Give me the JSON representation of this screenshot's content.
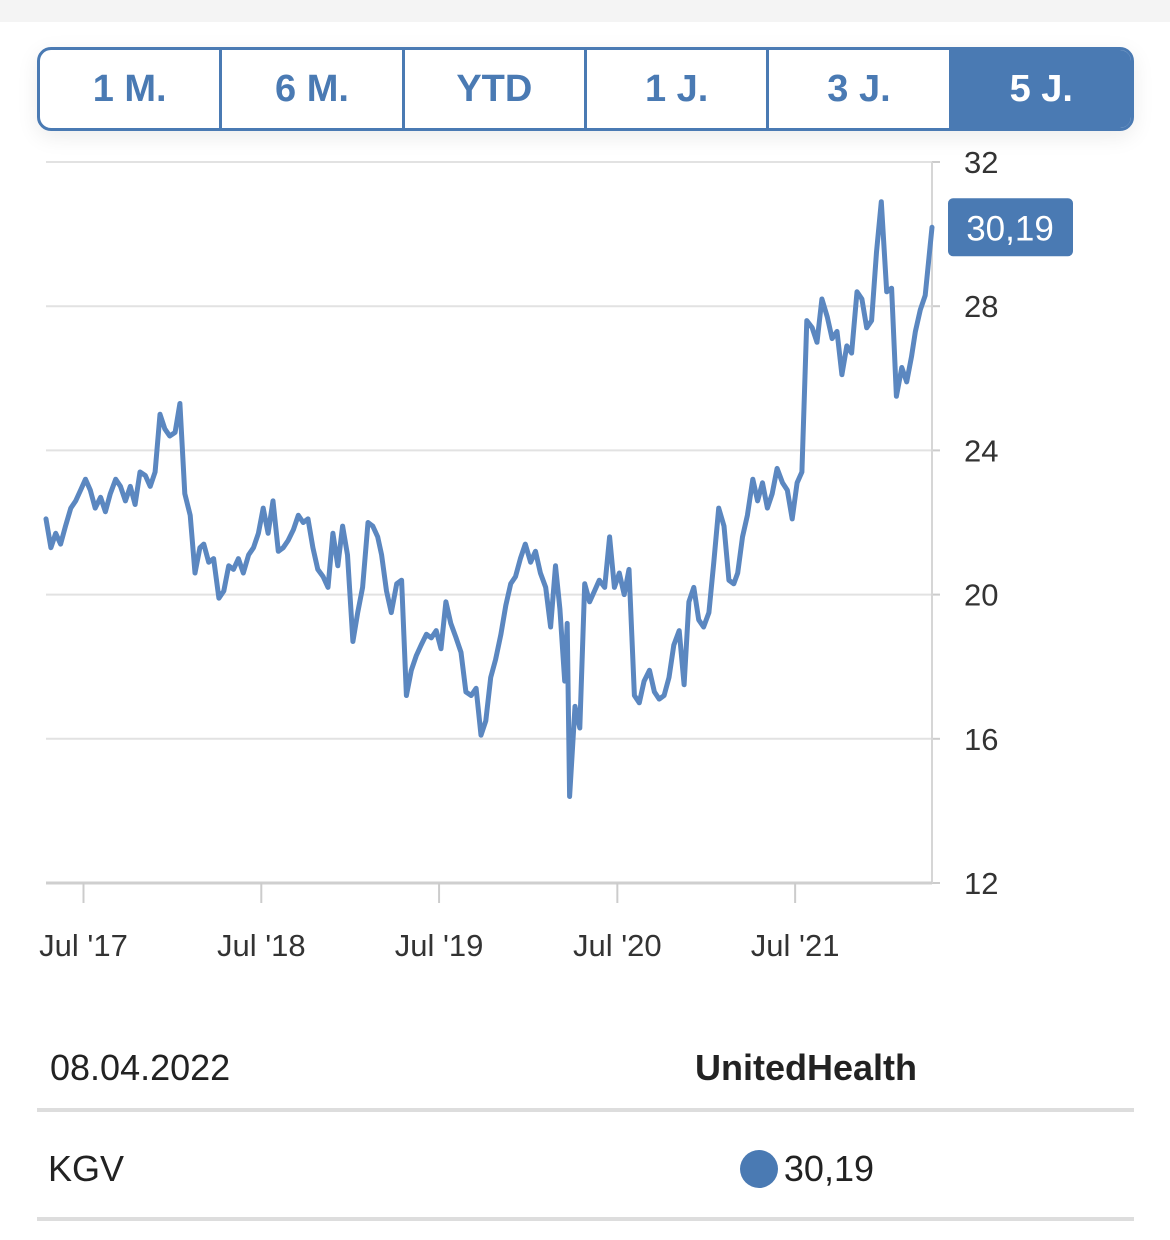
{
  "range_tabs": [
    {
      "label": "1 M.",
      "active": false
    },
    {
      "label": "6 M.",
      "active": false
    },
    {
      "label": "YTD",
      "active": false
    },
    {
      "label": "1 J.",
      "active": false
    },
    {
      "label": "3 J.",
      "active": false
    },
    {
      "label": "5 J.",
      "active": true
    }
  ],
  "info": {
    "date": "08.04.2022",
    "company": "UnitedHealth",
    "metric_label": "KGV",
    "metric_value": "30,19"
  },
  "colors": {
    "accent": "#4a7ab3",
    "line": "#5b87c0",
    "grid": "#e2e2e2",
    "divider": "#dddddd"
  },
  "chart_data": {
    "type": "line",
    "ylim": [
      12,
      32
    ],
    "yticks": [
      12,
      16,
      20,
      24,
      28,
      32
    ],
    "ytick_labels": [
      "12",
      "16",
      "20",
      "24",
      "28",
      "32"
    ],
    "xlim": [
      "2017-04-15",
      "2022-04-08"
    ],
    "xticks": [
      {
        "date": "2017-07-01",
        "label": "Jul '17"
      },
      {
        "date": "2018-07-01",
        "label": "Jul '18"
      },
      {
        "date": "2019-07-01",
        "label": "Jul '19"
      },
      {
        "date": "2020-07-01",
        "label": "Jul '20"
      },
      {
        "date": "2021-07-01",
        "label": "Jul '21"
      }
    ],
    "last_value_label": "30,19",
    "grid": true,
    "series": [
      {
        "points": [
          [
            "2017-04-15",
            22.1
          ],
          [
            "2017-04-25",
            21.3
          ],
          [
            "2017-05-05",
            21.7
          ],
          [
            "2017-05-15",
            21.4
          ],
          [
            "2017-05-25",
            21.9
          ],
          [
            "2017-06-05",
            22.4
          ],
          [
            "2017-06-15",
            22.6
          ],
          [
            "2017-06-25",
            22.9
          ],
          [
            "2017-07-05",
            23.2
          ],
          [
            "2017-07-15",
            22.9
          ],
          [
            "2017-07-25",
            22.4
          ],
          [
            "2017-08-05",
            22.7
          ],
          [
            "2017-08-15",
            22.3
          ],
          [
            "2017-08-25",
            22.8
          ],
          [
            "2017-09-05",
            23.2
          ],
          [
            "2017-09-15",
            23.0
          ],
          [
            "2017-09-25",
            22.6
          ],
          [
            "2017-10-05",
            23.0
          ],
          [
            "2017-10-15",
            22.5
          ],
          [
            "2017-10-25",
            23.4
          ],
          [
            "2017-11-05",
            23.3
          ],
          [
            "2017-11-15",
            23.0
          ],
          [
            "2017-11-25",
            23.4
          ],
          [
            "2017-12-05",
            25.0
          ],
          [
            "2017-12-15",
            24.6
          ],
          [
            "2017-12-25",
            24.4
          ],
          [
            "2018-01-05",
            24.5
          ],
          [
            "2018-01-15",
            25.3
          ],
          [
            "2018-01-25",
            22.8
          ],
          [
            "2018-02-05",
            22.2
          ],
          [
            "2018-02-15",
            20.6
          ],
          [
            "2018-02-25",
            21.3
          ],
          [
            "2018-03-05",
            21.4
          ],
          [
            "2018-03-15",
            20.9
          ],
          [
            "2018-03-25",
            21.0
          ],
          [
            "2018-04-05",
            19.9
          ],
          [
            "2018-04-15",
            20.1
          ],
          [
            "2018-04-25",
            20.8
          ],
          [
            "2018-05-05",
            20.7
          ],
          [
            "2018-05-15",
            21.0
          ],
          [
            "2018-05-25",
            20.6
          ],
          [
            "2018-06-05",
            21.1
          ],
          [
            "2018-06-15",
            21.3
          ],
          [
            "2018-06-25",
            21.7
          ],
          [
            "2018-07-05",
            22.4
          ],
          [
            "2018-07-15",
            21.7
          ],
          [
            "2018-07-25",
            22.6
          ],
          [
            "2018-08-05",
            21.2
          ],
          [
            "2018-08-15",
            21.3
          ],
          [
            "2018-08-25",
            21.5
          ],
          [
            "2018-09-05",
            21.8
          ],
          [
            "2018-09-15",
            22.2
          ],
          [
            "2018-09-25",
            22.0
          ],
          [
            "2018-10-05",
            22.1
          ],
          [
            "2018-10-15",
            21.3
          ],
          [
            "2018-10-25",
            20.7
          ],
          [
            "2018-11-05",
            20.5
          ],
          [
            "2018-11-15",
            20.2
          ],
          [
            "2018-11-25",
            21.7
          ],
          [
            "2018-12-05",
            20.8
          ],
          [
            "2018-12-15",
            21.9
          ],
          [
            "2018-12-25",
            21.1
          ],
          [
            "2019-01-05",
            18.7
          ],
          [
            "2019-01-15",
            19.5
          ],
          [
            "2019-01-25",
            20.2
          ],
          [
            "2019-02-05",
            22.0
          ],
          [
            "2019-02-15",
            21.9
          ],
          [
            "2019-02-25",
            21.6
          ],
          [
            "2019-03-05",
            21.1
          ],
          [
            "2019-03-15",
            20.1
          ],
          [
            "2019-03-25",
            19.5
          ],
          [
            "2019-04-05",
            20.3
          ],
          [
            "2019-04-15",
            20.4
          ],
          [
            "2019-04-25",
            17.2
          ],
          [
            "2019-05-05",
            17.9
          ],
          [
            "2019-05-15",
            18.3
          ],
          [
            "2019-05-25",
            18.6
          ],
          [
            "2019-06-05",
            18.9
          ],
          [
            "2019-06-15",
            18.8
          ],
          [
            "2019-06-25",
            19.0
          ],
          [
            "2019-07-05",
            18.5
          ],
          [
            "2019-07-15",
            19.8
          ],
          [
            "2019-07-25",
            19.2
          ],
          [
            "2019-08-05",
            18.8
          ],
          [
            "2019-08-15",
            18.4
          ],
          [
            "2019-08-25",
            17.3
          ],
          [
            "2019-09-05",
            17.2
          ],
          [
            "2019-09-15",
            17.4
          ],
          [
            "2019-09-25",
            16.1
          ],
          [
            "2019-10-05",
            16.5
          ],
          [
            "2019-10-15",
            17.7
          ],
          [
            "2019-10-25",
            18.2
          ],
          [
            "2019-11-05",
            18.9
          ],
          [
            "2019-11-15",
            19.7
          ],
          [
            "2019-11-25",
            20.3
          ],
          [
            "2019-12-05",
            20.5
          ],
          [
            "2019-12-15",
            21.0
          ],
          [
            "2019-12-25",
            21.4
          ],
          [
            "2020-01-05",
            20.9
          ],
          [
            "2020-01-15",
            21.2
          ],
          [
            "2020-01-25",
            20.6
          ],
          [
            "2020-02-05",
            20.2
          ],
          [
            "2020-02-15",
            19.1
          ],
          [
            "2020-02-25",
            20.8
          ],
          [
            "2020-03-05",
            19.6
          ],
          [
            "2020-03-15",
            17.6
          ],
          [
            "2020-03-20",
            19.2
          ],
          [
            "2020-03-25",
            14.4
          ],
          [
            "2020-04-05",
            16.9
          ],
          [
            "2020-04-15",
            16.3
          ],
          [
            "2020-04-25",
            20.3
          ],
          [
            "2020-05-05",
            19.8
          ],
          [
            "2020-05-15",
            20.1
          ],
          [
            "2020-05-25",
            20.4
          ],
          [
            "2020-06-05",
            20.2
          ],
          [
            "2020-06-15",
            21.6
          ],
          [
            "2020-06-25",
            20.2
          ],
          [
            "2020-07-05",
            20.6
          ],
          [
            "2020-07-15",
            20.0
          ],
          [
            "2020-07-25",
            20.7
          ],
          [
            "2020-08-05",
            17.2
          ],
          [
            "2020-08-15",
            17.0
          ],
          [
            "2020-08-25",
            17.6
          ],
          [
            "2020-09-05",
            17.9
          ],
          [
            "2020-09-15",
            17.3
          ],
          [
            "2020-09-25",
            17.1
          ],
          [
            "2020-10-05",
            17.2
          ],
          [
            "2020-10-15",
            17.7
          ],
          [
            "2020-10-25",
            18.6
          ],
          [
            "2020-11-05",
            19.0
          ],
          [
            "2020-11-15",
            17.5
          ],
          [
            "2020-11-25",
            19.8
          ],
          [
            "2020-12-05",
            20.2
          ],
          [
            "2020-12-15",
            19.3
          ],
          [
            "2020-12-25",
            19.1
          ],
          [
            "2021-01-05",
            19.5
          ],
          [
            "2021-01-15",
            20.9
          ],
          [
            "2021-01-25",
            22.4
          ],
          [
            "2021-02-05",
            21.9
          ],
          [
            "2021-02-15",
            20.4
          ],
          [
            "2021-02-25",
            20.3
          ],
          [
            "2021-03-05",
            20.6
          ],
          [
            "2021-03-15",
            21.6
          ],
          [
            "2021-03-25",
            22.2
          ],
          [
            "2021-04-05",
            23.2
          ],
          [
            "2021-04-15",
            22.6
          ],
          [
            "2021-04-25",
            23.1
          ],
          [
            "2021-05-05",
            22.4
          ],
          [
            "2021-05-15",
            22.8
          ],
          [
            "2021-05-25",
            23.5
          ],
          [
            "2021-06-05",
            23.1
          ],
          [
            "2021-06-15",
            22.9
          ],
          [
            "2021-06-25",
            22.1
          ],
          [
            "2021-07-05",
            23.1
          ],
          [
            "2021-07-15",
            23.4
          ],
          [
            "2021-07-25",
            27.6
          ],
          [
            "2021-08-05",
            27.4
          ],
          [
            "2021-08-15",
            27.0
          ],
          [
            "2021-08-25",
            28.2
          ],
          [
            "2021-09-05",
            27.7
          ],
          [
            "2021-09-15",
            27.1
          ],
          [
            "2021-09-25",
            27.3
          ],
          [
            "2021-10-05",
            26.1
          ],
          [
            "2021-10-15",
            26.9
          ],
          [
            "2021-10-25",
            26.7
          ],
          [
            "2021-11-05",
            28.4
          ],
          [
            "2021-11-15",
            28.2
          ],
          [
            "2021-11-25",
            27.4
          ],
          [
            "2021-12-05",
            27.6
          ],
          [
            "2021-12-15",
            29.5
          ],
          [
            "2021-12-25",
            30.9
          ],
          [
            "2022-01-05",
            28.4
          ],
          [
            "2022-01-15",
            28.5
          ],
          [
            "2022-01-25",
            25.5
          ],
          [
            "2022-02-05",
            26.3
          ],
          [
            "2022-02-15",
            25.9
          ],
          [
            "2022-02-25",
            26.6
          ],
          [
            "2022-03-05",
            27.3
          ],
          [
            "2022-03-15",
            27.9
          ],
          [
            "2022-03-25",
            28.3
          ],
          [
            "2022-04-08",
            30.19
          ]
        ]
      }
    ]
  }
}
